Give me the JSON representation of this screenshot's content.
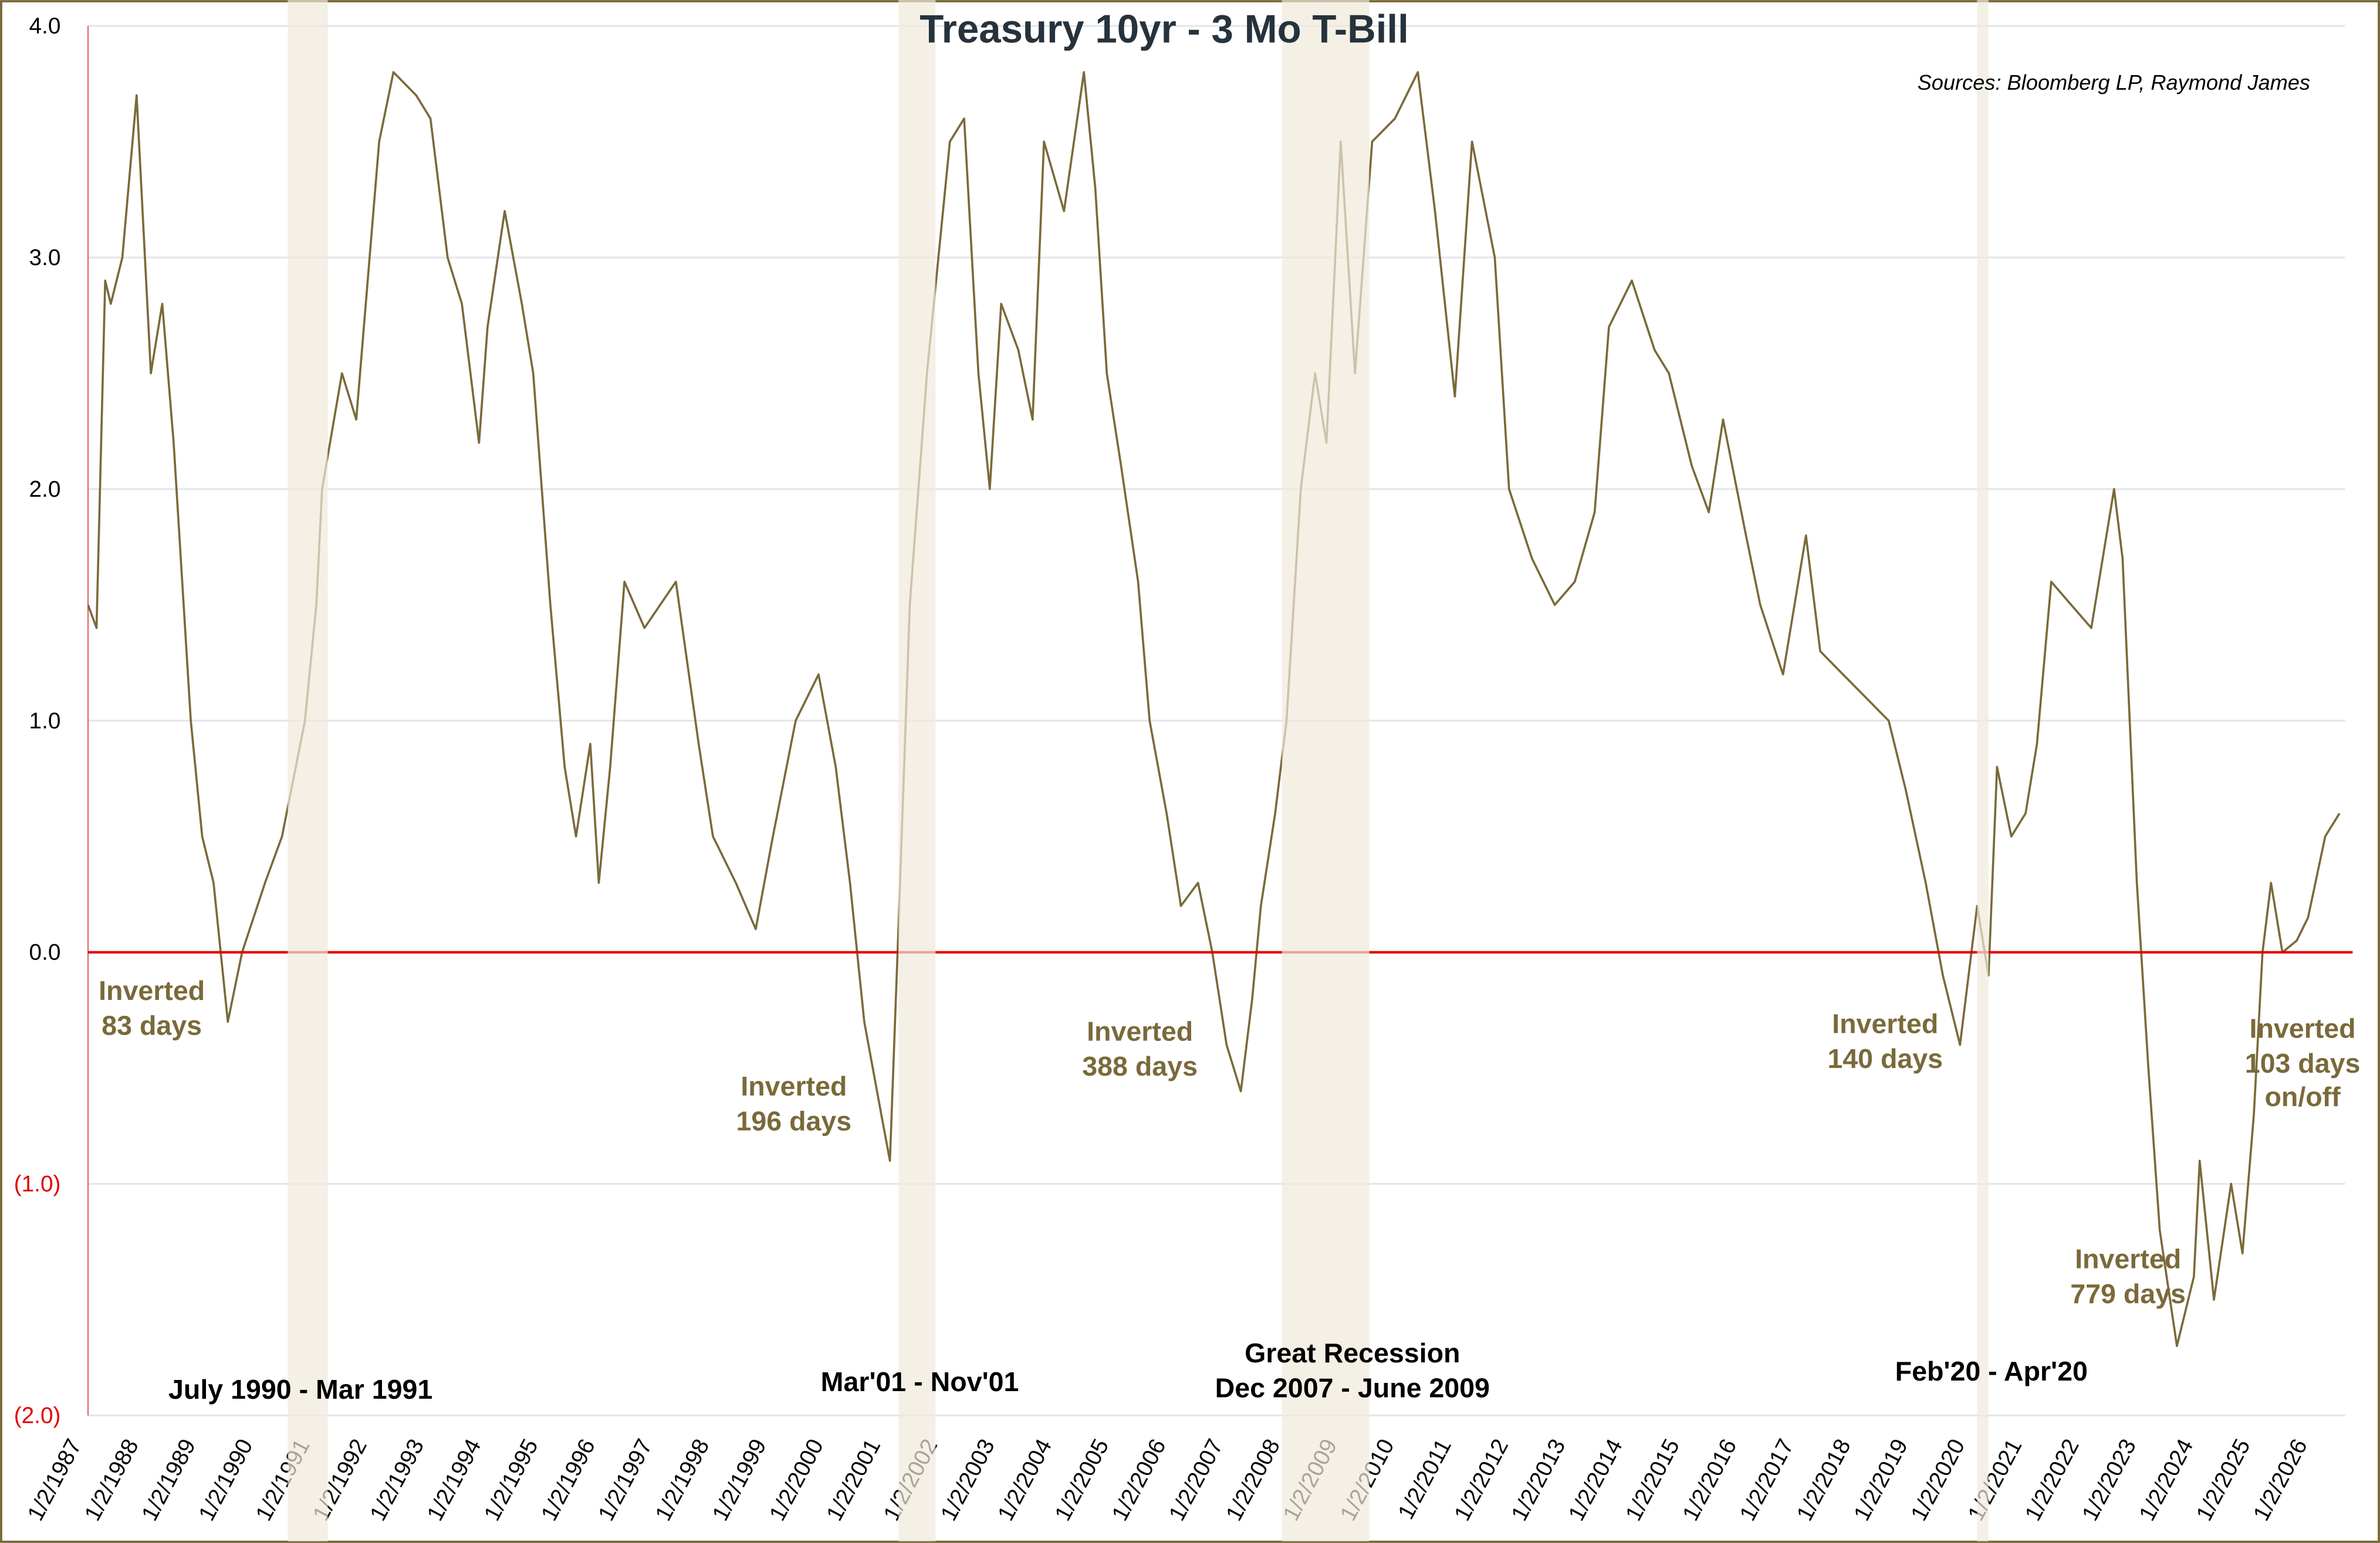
{
  "chart_data": {
    "type": "line",
    "title": "Treasury 10yr - 3 Mo T-Bill",
    "source": "Sources: Bloomberg LP, Raymond James",
    "ylim": [
      -2.0,
      4.0
    ],
    "y_ticks": [
      {
        "value": 4.0,
        "label": "4.0"
      },
      {
        "value": 3.0,
        "label": "3.0"
      },
      {
        "value": 2.0,
        "label": "2.0"
      },
      {
        "value": 1.0,
        "label": "1.0"
      },
      {
        "value": 0.0,
        "label": "0.0"
      },
      {
        "value": -1.0,
        "label": "(1.0)"
      },
      {
        "value": -2.0,
        "label": "(2.0)"
      }
    ],
    "x_ticks": [
      "1/2/1987",
      "1/2/1988",
      "1/2/1989",
      "1/2/1990",
      "1/2/1991",
      "1/2/1992",
      "1/2/1993",
      "1/2/1994",
      "1/2/1995",
      "1/2/1996",
      "1/2/1997",
      "1/2/1998",
      "1/2/1999",
      "1/2/2000",
      "1/2/2001",
      "1/2/2002",
      "1/2/2003",
      "1/2/2004",
      "1/2/2005",
      "1/2/2006",
      "1/2/2007",
      "1/2/2008",
      "1/2/2009",
      "1/2/2010",
      "1/2/2011",
      "1/2/2012",
      "1/2/2013",
      "1/2/2014",
      "1/2/2015",
      "1/2/2016",
      "1/2/2017",
      "1/2/2018",
      "1/2/2019",
      "1/2/2020",
      "1/2/2021",
      "1/2/2022",
      "1/2/2023",
      "1/2/2024",
      "1/2/2025",
      "1/2/2026"
    ],
    "grid": true,
    "reference_line": {
      "value": 0.0,
      "color": "#e00000"
    },
    "colors": {
      "series": "#7a6a3a",
      "recession_band": "#efe9dc",
      "border": "#7a6a3a",
      "negative_tick": "#e00000"
    },
    "series": [
      {
        "x": [
          1987.0,
          1987.15,
          1987.3,
          1987.4,
          1987.6,
          1987.85,
          1988.1,
          1988.3,
          1988.5,
          1988.8,
          1989.0,
          1989.2,
          1989.45,
          1989.7,
          1990.1,
          1990.4,
          1990.8,
          1991.0,
          1991.1,
          1991.45,
          1991.7,
          1992.1,
          1992.35,
          1992.75,
          1993.0,
          1993.3,
          1993.55,
          1993.85,
          1994.0,
          1994.3,
          1994.6,
          1994.8,
          1995.1,
          1995.35,
          1995.55,
          1995.8,
          1995.95,
          1996.15,
          1996.4,
          1996.75,
          1997.3,
          1997.7,
          1997.95,
          1998.35,
          1998.7,
          1999.0,
          1999.4,
          1999.8,
          2000.1,
          2000.35,
          2000.6,
          2000.9,
          2001.05,
          2001.2,
          2001.4,
          2001.7,
          2002.1,
          2002.35,
          2002.6,
          2002.8,
          2003.0,
          2003.3,
          2003.55,
          2003.75,
          2004.1,
          2004.45,
          2004.65,
          2004.85,
          2005.1,
          2005.4,
          2005.6,
          2005.9,
          2006.15,
          2006.45,
          2006.7,
          2006.95,
          2007.2,
          2007.4,
          2007.55,
          2007.8,
          2008.0,
          2008.25,
          2008.5,
          2008.7,
          2008.95,
          2009.2,
          2009.5,
          2009.9,
          2010.3,
          2010.6,
          2010.95,
          2011.25,
          2011.65,
          2011.9,
          2012.3,
          2012.7,
          2013.05,
          2013.4,
          2013.65,
          2014.05,
          2014.45,
          2014.7,
          2015.1,
          2015.4,
          2015.65,
          2016.05,
          2016.3,
          2016.7,
          2017.1,
          2017.35,
          2017.75,
          2018.15,
          2018.55,
          2018.85,
          2019.2,
          2019.5,
          2019.8,
          2020.1,
          2020.3,
          2020.45,
          2020.7,
          2020.95,
          2021.15,
          2021.4,
          2021.75,
          2022.1,
          2022.5,
          2022.65,
          2022.9,
          2023.1,
          2023.3,
          2023.6,
          2023.9,
          2024.0,
          2024.25,
          2024.55,
          2024.75,
          2024.95,
          2025.1,
          2025.25,
          2025.45,
          2025.7,
          2025.9,
          2026.2,
          2026.45
        ],
        "values": [
          1.5,
          1.4,
          2.9,
          2.8,
          3.0,
          3.7,
          2.5,
          2.8,
          2.2,
          1.0,
          0.5,
          0.3,
          -0.3,
          0.0,
          0.3,
          0.5,
          1.0,
          1.5,
          2.0,
          2.5,
          2.3,
          3.5,
          3.8,
          3.7,
          3.6,
          3.0,
          2.8,
          2.2,
          2.7,
          3.2,
          2.8,
          2.5,
          1.5,
          0.8,
          0.5,
          0.9,
          0.3,
          0.8,
          1.6,
          1.4,
          1.6,
          0.9,
          0.5,
          0.3,
          0.1,
          0.5,
          1.0,
          1.2,
          0.8,
          0.3,
          -0.3,
          -0.7,
          -0.9,
          0.1,
          1.5,
          2.5,
          3.5,
          3.6,
          2.5,
          2.0,
          2.8,
          2.6,
          2.3,
          3.5,
          3.2,
          3.8,
          3.3,
          2.5,
          2.1,
          1.6,
          1.0,
          0.6,
          0.2,
          0.3,
          0.0,
          -0.4,
          -0.6,
          -0.2,
          0.2,
          0.6,
          1.0,
          2.0,
          2.5,
          2.2,
          3.5,
          2.5,
          3.5,
          3.6,
          3.8,
          3.2,
          2.4,
          3.5,
          3.0,
          2.0,
          1.7,
          1.5,
          1.6,
          1.9,
          2.7,
          2.9,
          2.6,
          2.5,
          2.1,
          1.9,
          2.3,
          1.8,
          1.5,
          1.2,
          1.8,
          1.3,
          1.2,
          1.1,
          1.0,
          0.7,
          0.3,
          -0.1,
          -0.4,
          0.2,
          -0.1,
          0.8,
          0.5,
          0.6,
          0.9,
          1.6,
          1.5,
          1.4,
          2.0,
          1.7,
          0.3,
          -0.5,
          -1.2,
          -1.7,
          -1.4,
          -0.9,
          -1.5,
          -1.0,
          -1.3,
          -0.7,
          0.0,
          0.3,
          0.0,
          0.05,
          0.15,
          0.5,
          0.6
        ]
      }
    ],
    "recessions": [
      {
        "label": "July 1990 - Mar 1991",
        "start": 1990.5,
        "end": 1991.2
      },
      {
        "label": "Mar'01 - Nov'01",
        "start": 2001.2,
        "end": 2001.85
      },
      {
        "label_line1": "Great Recession",
        "label": "Dec 2007 - June 2009",
        "start": 2007.92,
        "end": 2009.45
      },
      {
        "label": "Feb'20 - Apr'20",
        "start": 2020.1,
        "end": 2020.3
      }
    ],
    "annotations": [
      {
        "line1": "Inverted",
        "line2": "83 days"
      },
      {
        "line1": "Inverted",
        "line2": "196 days"
      },
      {
        "line1": "Inverted",
        "line2": "388 days"
      },
      {
        "line1": "Inverted",
        "line2": "140 days"
      },
      {
        "line1": "Inverted",
        "line2": "779 days"
      },
      {
        "line1": "Inverted",
        "line2": "103 days",
        "line3": "on/off"
      }
    ]
  }
}
